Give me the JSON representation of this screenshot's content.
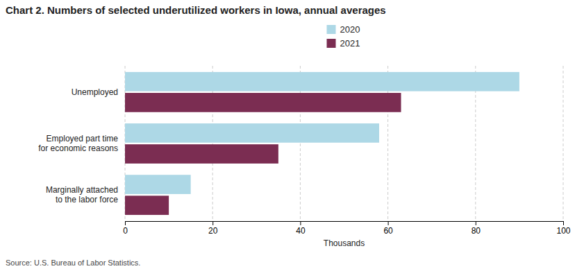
{
  "chart_data": {
    "type": "bar",
    "orientation": "horizontal",
    "title": "Chart 2. Numbers of selected underutilized workers in Iowa, annual averages",
    "categories": [
      "Unemployed",
      "Employed part time\nfor economic reasons",
      "Marginally attached\nto the labor force"
    ],
    "series": [
      {
        "name": "2020",
        "color": "#add8e6",
        "values": [
          90,
          58,
          15
        ]
      },
      {
        "name": "2021",
        "color": "#7b2d52",
        "values": [
          63,
          35,
          10
        ]
      }
    ],
    "xlim": [
      0,
      100
    ],
    "xticks": [
      0,
      20,
      40,
      60,
      80,
      100
    ],
    "xlabel": "Thousands",
    "grid": true,
    "legend": "top",
    "annotations": [
      "Source: U.S. Bureau of Labor Statistics."
    ]
  }
}
